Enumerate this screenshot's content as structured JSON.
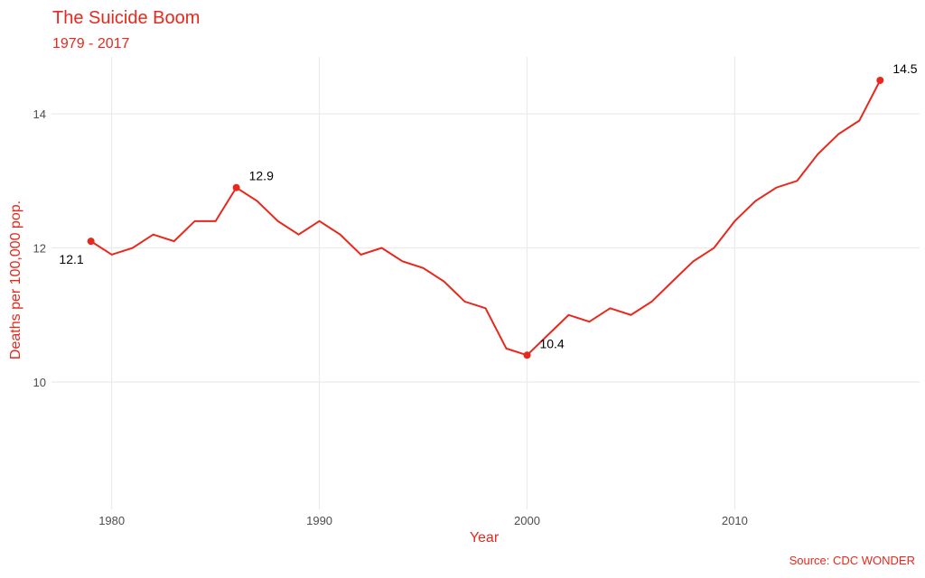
{
  "chart_data": {
    "type": "line",
    "title": "The Suicide Boom",
    "subtitle": "1979 - 2017",
    "xlabel": "Year",
    "ylabel": "Deaths per 100,000 pop.",
    "caption": "Source: CDC WONDER",
    "xlim": [
      1977.1,
      2018.9
    ],
    "ylim": [
      8.1,
      14.85
    ],
    "x_ticks": [
      1980,
      1990,
      2000,
      2010
    ],
    "y_ticks": [
      10,
      12,
      14
    ],
    "grid": true,
    "line_color": "#e8281c",
    "series": [
      {
        "x": [
          1979,
          1980,
          1981,
          1982,
          1983,
          1984,
          1985,
          1986,
          1987,
          1988,
          1989,
          1990,
          1991,
          1992,
          1993,
          1994,
          1995,
          1996,
          1997,
          1998,
          1999,
          2000,
          2001,
          2002,
          2003,
          2004,
          2005,
          2006,
          2007,
          2008,
          2009,
          2010,
          2011,
          2012,
          2013,
          2014,
          2015,
          2016,
          2017
        ],
        "y": [
          12.1,
          11.9,
          12.0,
          12.2,
          12.1,
          12.4,
          12.4,
          12.9,
          12.7,
          12.4,
          12.2,
          12.4,
          12.2,
          11.9,
          12.0,
          11.8,
          11.7,
          11.5,
          11.2,
          11.1,
          10.5,
          10.4,
          10.7,
          11.0,
          10.9,
          11.1,
          11.0,
          11.2,
          11.5,
          11.8,
          12.0,
          12.4,
          12.7,
          12.9,
          13.0,
          13.4,
          13.7,
          13.9,
          14.5
        ]
      }
    ],
    "annotations": [
      {
        "x": 1979,
        "y": 12.1,
        "label": "12.1",
        "position": "below-left"
      },
      {
        "x": 1986,
        "y": 12.9,
        "label": "12.9",
        "position": "above-right"
      },
      {
        "x": 2000,
        "y": 10.4,
        "label": "10.4",
        "position": "above-right"
      },
      {
        "x": 2017,
        "y": 14.5,
        "label": "14.5",
        "position": "above-right"
      }
    ]
  }
}
